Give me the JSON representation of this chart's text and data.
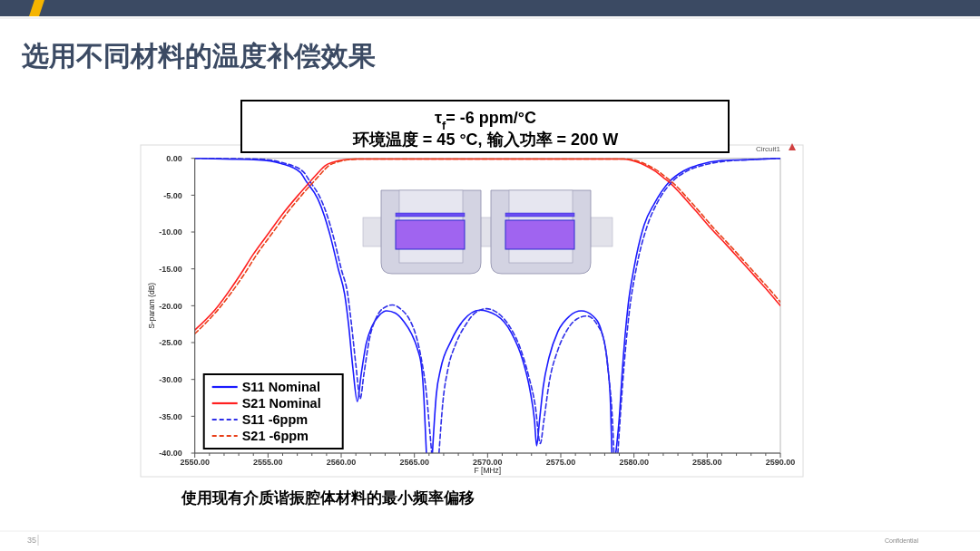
{
  "chart_data": {
    "type": "line",
    "title": "选用不同材料的温度补偿效果",
    "xlabel": "F [MHz]",
    "ylabel": "S-param (dB)",
    "annotations": [
      "τ$_{f}$= -6 ppm/°C",
      "环境温度 = 45 °C, 输入功率 = 200 W",
      "使用现有介质谐振腔体材料的最小频率偏移",
      "Circuit1",
      "35",
      "Confidential"
    ],
    "xlim": [
      2550,
      2590
    ],
    "ylim": [
      -40,
      0
    ],
    "xticks": [
      {
        "value": 2550,
        "label": "2550.00"
      },
      {
        "value": 2551,
        "label": null
      },
      {
        "value": 2552,
        "label": null
      },
      {
        "value": 2553,
        "label": null
      },
      {
        "value": 2554,
        "label": null
      },
      {
        "value": 2555,
        "label": "2555.00"
      },
      {
        "value": 2556,
        "label": null
      },
      {
        "value": 2557,
        "label": null
      },
      {
        "value": 2558,
        "label": null
      },
      {
        "value": 2559,
        "label": null
      },
      {
        "value": 2560,
        "label": "2560.00"
      },
      {
        "value": 2561,
        "label": null
      },
      {
        "value": 2562,
        "label": null
      },
      {
        "value": 2563,
        "label": null
      },
      {
        "value": 2564,
        "label": null
      },
      {
        "value": 2565,
        "label": "2565.00"
      },
      {
        "value": 2566,
        "label": null
      },
      {
        "value": 2567,
        "label": null
      },
      {
        "value": 2568,
        "label": null
      },
      {
        "value": 2569,
        "label": null
      },
      {
        "value": 2570,
        "label": "2570.00"
      },
      {
        "value": 2571,
        "label": null
      },
      {
        "value": 2572,
        "label": null
      },
      {
        "value": 2573,
        "label": null
      },
      {
        "value": 2574,
        "label": null
      },
      {
        "value": 2575,
        "label": "2575.00"
      },
      {
        "value": 2576,
        "label": null
      },
      {
        "value": 2577,
        "label": null
      },
      {
        "value": 2578,
        "label": null
      },
      {
        "value": 2579,
        "label": null
      },
      {
        "value": 2580,
        "label": "2580.00"
      },
      {
        "value": 2581,
        "label": null
      },
      {
        "value": 2582,
        "label": null
      },
      {
        "value": 2583,
        "label": null
      },
      {
        "value": 2584,
        "label": null
      },
      {
        "value": 2585,
        "label": "2585.00"
      },
      {
        "value": 2586,
        "label": null
      },
      {
        "value": 2587,
        "label": null
      },
      {
        "value": 2588,
        "label": null
      },
      {
        "value": 2589,
        "label": null
      },
      {
        "value": 2590,
        "label": "2590.00"
      }
    ],
    "yticks": [
      {
        "value": 0,
        "label": "0.00"
      },
      {
        "value": -5,
        "label": "-5.00"
      },
      {
        "value": -10,
        "label": "-10.00"
      },
      {
        "value": -15,
        "label": "-15.00"
      },
      {
        "value": -20,
        "label": "-20.00"
      },
      {
        "value": -25,
        "label": "-25.00"
      },
      {
        "value": -30,
        "label": "-30.00"
      },
      {
        "value": -35,
        "label": "-35.00"
      },
      {
        "value": -40,
        "label": "-40.00"
      }
    ],
    "legend": "bottom left",
    "series": [
      {
        "name": "S11 Nominal",
        "color": "#1a1aff",
        "line_style": "solid",
        "x": [
          2550,
          2552,
          2554.3,
          2555.9,
          2557.2,
          2557.6,
          2558.4,
          2558.85,
          2559.25,
          2559.8,
          2560.24,
          2560.5,
          2560.8,
          2561.1,
          2561.35,
          2561.7,
          2562.1,
          2562.6,
          2563.1,
          2563.7,
          2564.3,
          2564.8,
          2565.2,
          2565.5,
          2565.65,
          2565.82,
          2566.0,
          2566.23,
          2566.5,
          2566.8,
          2567.5,
          2568.34,
          2569.45,
          2570.6,
          2571.6,
          2572.4,
          2572.9,
          2573.2,
          2573.35,
          2573.55,
          2573.8,
          2574.2,
          2574.8,
          2575.6,
          2576.4,
          2577.2,
          2577.8,
          2578.2,
          2578.4,
          2578.49,
          2578.6,
          2578.76,
          2579.0,
          2579.2,
          2579.6,
          2580.0,
          2580.7,
          2581.4,
          2582.4,
          2583.4,
          2584.4,
          2586.0,
          2587.6,
          2590
        ],
        "values": [
          0,
          -0.1,
          -0.2,
          -0.7,
          -1.9,
          -3.1,
          -5.5,
          -7.8,
          -10.5,
          -15.0,
          -18.5,
          -22.5,
          -28.5,
          -33.0,
          -29.5,
          -25.2,
          -22.8,
          -21.3,
          -20.7,
          -21.0,
          -22.2,
          -23.8,
          -25.8,
          -28.5,
          -32.5,
          -40,
          null,
          -40,
          -32.0,
          -28.5,
          -24.8,
          -22.0,
          -20.6,
          -21.3,
          -23.6,
          -27.4,
          -31.5,
          -35.5,
          -39.0,
          -35.5,
          -31.0,
          -27.0,
          -23.5,
          -21.4,
          -20.7,
          -21.4,
          -23.6,
          -28.0,
          -33.5,
          -40,
          null,
          -40,
          -35.1,
          -28.9,
          -19.9,
          -14.9,
          -9.0,
          -6.1,
          -3.2,
          -1.7,
          -0.9,
          -0.3,
          -0.2,
          0
        ]
      },
      {
        "name": "S21 Nominal",
        "color": "#ff2020",
        "line_style": "solid",
        "x": [
          2550,
          2551.4,
          2553.1,
          2554.0,
          2555.1,
          2556.1,
          2557.06,
          2557.9,
          2558.4,
          2558.9,
          2559.5,
          2560.2,
          2561,
          2579.3,
          2579.9,
          2580.5,
          2581.0,
          2581.5,
          2582.0,
          2582.5,
          2583.0,
          2583.5,
          2584.3,
          2585.3,
          2586.3,
          2587.3,
          2588.3,
          2589.2,
          2590
        ],
        "values": [
          -23.3,
          -20.5,
          -15.8,
          -13.0,
          -10.0,
          -7.3,
          -5.0,
          -3.1,
          -2.0,
          -1.0,
          -0.5,
          -0.2,
          -0.1,
          -0.1,
          -0.3,
          -0.7,
          -1.2,
          -1.8,
          -2.6,
          -3.4,
          -4.4,
          -5.5,
          -7.3,
          -9.6,
          -11.7,
          -13.9,
          -16.1,
          -18.1,
          -20.0
        ]
      },
      {
        "name": "S11 -6ppm",
        "color": "#2e2ee8",
        "line_style": "dashed",
        "x": [
          2550,
          2554.3,
          2556.0,
          2557.4,
          2557.85,
          2558.6,
          2559.05,
          2559.45,
          2560.0,
          2560.45,
          2560.7,
          2561.0,
          2561.3,
          2561.55,
          2561.93,
          2562.4,
          2562.9,
          2563.5,
          2564.1,
          2564.7,
          2565.1,
          2565.5,
          2565.8,
          2566.05,
          2566.18,
          2566.45,
          2566.68,
          2566.95,
          2567.3,
          2567.8,
          2568.5,
          2569.2,
          2569.94,
          2570.7,
          2571.5,
          2572.2,
          2572.8,
          2573.25,
          2573.6,
          2573.85,
          2574.2,
          2574.8,
          2575.4,
          2576.1,
          2576.8,
          2577.5,
          2577.97,
          2578.3,
          2578.5,
          2578.63,
          2578.75,
          2578.9,
          2579.1,
          2579.35,
          2579.7,
          2580.15,
          2580.9,
          2581.6,
          2582.6,
          2583.55,
          2584.8,
          2586.2,
          2587.7,
          2590
        ],
        "values": [
          0,
          -0.1,
          -0.6,
          -1.8,
          -3.1,
          -5.5,
          -7.8,
          -10.5,
          -15.0,
          -18.5,
          -22.5,
          -28.0,
          -32.6,
          -29.3,
          -24.5,
          -21.6,
          -20.3,
          -19.9,
          -20.5,
          -22.0,
          -24.0,
          -27.5,
          -31.5,
          -37.0,
          -40,
          null,
          -40,
          -33.0,
          -28.5,
          -25.3,
          -22.6,
          -20.9,
          -20.4,
          -21.0,
          -22.8,
          -25.6,
          -29.5,
          -33.5,
          -38.7,
          -35.5,
          -30.5,
          -26.0,
          -23.4,
          -21.8,
          -21.4,
          -22.6,
          -24.9,
          -30.0,
          -34.5,
          -40,
          null,
          -40,
          -34.0,
          -27.5,
          -20.5,
          -15.0,
          -9.2,
          -6.0,
          -3.2,
          -1.8,
          -0.9,
          -0.4,
          -0.2,
          0
        ]
      },
      {
        "name": "S21 -6ppm",
        "color": "#e8401a",
        "line_style": "dashed",
        "x": [
          2550,
          2551.6,
          2553.35,
          2554.25,
          2555.35,
          2556.35,
          2557.3,
          2558.15,
          2558.65,
          2559.15,
          2559.75,
          2560.45,
          2561.3,
          2579.5,
          2580.1,
          2580.7,
          2581.2,
          2581.7,
          2582.2,
          2582.7,
          2583.2,
          2583.7,
          2584.5,
          2585.5,
          2586.5,
          2587.5,
          2588.5,
          2589.4,
          2590
        ],
        "values": [
          -23.8,
          -20.5,
          -15.8,
          -13.0,
          -10.0,
          -7.3,
          -5.0,
          -3.1,
          -2.0,
          -1.0,
          -0.5,
          -0.2,
          -0.1,
          -0.1,
          -0.3,
          -0.7,
          -1.2,
          -1.8,
          -2.6,
          -3.4,
          -4.4,
          -5.5,
          -7.3,
          -9.6,
          -11.7,
          -13.9,
          -16.1,
          -18.1,
          -19.5
        ]
      }
    ]
  }
}
